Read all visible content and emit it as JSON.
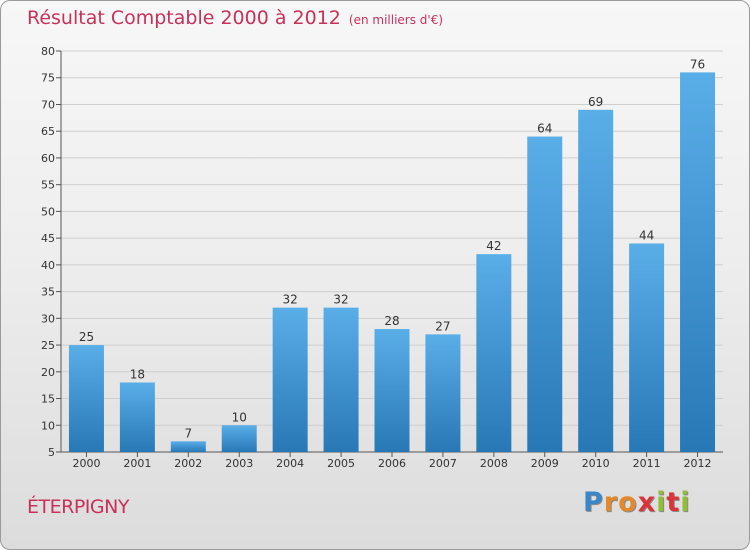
{
  "chart_data": {
    "type": "bar",
    "title": "Résultat Comptable 2000 à 2012",
    "subtitle": "(en milliers d'€)",
    "categories": [
      "2000",
      "2001",
      "2002",
      "2003",
      "2004",
      "2005",
      "2006",
      "2007",
      "2008",
      "2009",
      "2010",
      "2011",
      "2012"
    ],
    "values": [
      25,
      18,
      7,
      10,
      32,
      32,
      28,
      27,
      42,
      64,
      69,
      44,
      76
    ],
    "ylim": [
      5,
      80
    ],
    "yticks": [
      5,
      10,
      15,
      20,
      25,
      30,
      35,
      40,
      45,
      50,
      55,
      60,
      65,
      70,
      75,
      80
    ],
    "xlabel": "",
    "ylabel": "",
    "grid": true,
    "colors": {
      "bar_top": "#5aaee8",
      "bar_bottom": "#2878b6",
      "grid": "#cfcfcf"
    }
  },
  "commune": "ÉTERPIGNY",
  "logo": {
    "letters": [
      "P",
      "r",
      "o",
      "x",
      "i",
      "t",
      "i"
    ],
    "colors": [
      "#3a86c8",
      "#e3892b",
      "#e3892b",
      "#d8353a",
      "#8fbf34",
      "#d8353a",
      "#8fbf34"
    ]
  }
}
